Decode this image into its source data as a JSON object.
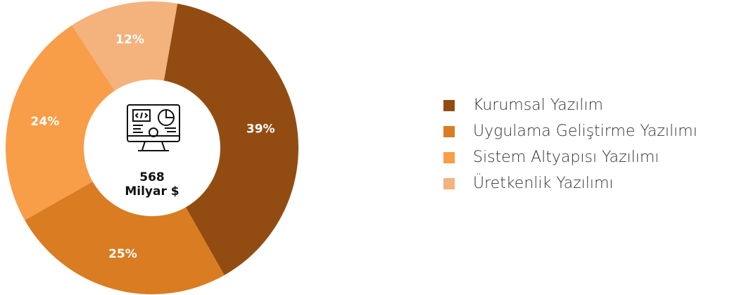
{
  "chart_data": {
    "type": "donut",
    "center_label": [
      "568",
      "Milyar $"
    ],
    "categories": [
      "Kurumsal Yazılım",
      "Uygulama Geliştirme Yazılımı",
      "Sistem Altyapısı Yazılımı",
      "Üretkenlik Yazılımı"
    ],
    "values": [
      39,
      25,
      24,
      12
    ],
    "value_labels": [
      "39%",
      "25%",
      "24%",
      "12%"
    ],
    "colors": [
      "#924c12",
      "#d97c22",
      "#f89d48",
      "#f4b27d"
    ],
    "legend": "right"
  }
}
